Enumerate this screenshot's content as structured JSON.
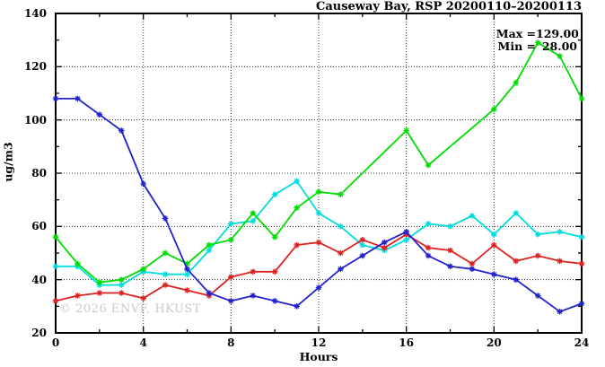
{
  "title": "Causeway Bay, RSP 20200110–20200113",
  "watermark": "© 2026 ENVF, HKUST",
  "annotations": {
    "max_label": "Max =",
    "max_value": "129.00",
    "min_label": "Min =",
    "min_value": "28.00"
  },
  "chart_data": {
    "type": "line",
    "title": "Causeway Bay, RSP 20200110–20200113",
    "xlabel": "Hours",
    "ylabel": "ug/m3",
    "xlim": [
      0,
      24
    ],
    "ylim": [
      20,
      140
    ],
    "xticks": [
      0,
      4,
      8,
      12,
      16,
      20,
      24
    ],
    "yticks": [
      20,
      40,
      60,
      80,
      100,
      120,
      140
    ],
    "x_minor_step": 2,
    "y_minor_step": 10,
    "grid": true,
    "legend": "none",
    "marker": "asterisk",
    "max": 129.0,
    "min": 28.0,
    "x": [
      0,
      1,
      2,
      3,
      4,
      5,
      6,
      7,
      8,
      9,
      10,
      11,
      12,
      13,
      14,
      15,
      16,
      17,
      18,
      19,
      20,
      21,
      22,
      23,
      24
    ],
    "series": [
      {
        "name": "cyan",
        "color": "#00dddd",
        "values": [
          45,
          45,
          38,
          38,
          43,
          42,
          42,
          51,
          61,
          62,
          72,
          77,
          65,
          60,
          53,
          51,
          55,
          61,
          60,
          64,
          57,
          65,
          57,
          58,
          56
        ]
      },
      {
        "name": "green",
        "color": "#00dd00",
        "values": [
          56,
          46,
          39,
          40,
          44,
          50,
          46,
          53,
          55,
          65,
          56,
          67,
          73,
          72,
          null,
          null,
          96,
          83,
          null,
          null,
          104,
          114,
          129,
          124,
          108
        ]
      },
      {
        "name": "red",
        "color": "#dd2222",
        "values": [
          32,
          34,
          35,
          35,
          33,
          38,
          36,
          34,
          41,
          43,
          43,
          53,
          54,
          50,
          55,
          52,
          57,
          52,
          51,
          46,
          53,
          47,
          49,
          47,
          46
        ]
      },
      {
        "name": "blue",
        "color": "#2222cc",
        "values": [
          108,
          108,
          102,
          96,
          76,
          63,
          44,
          35,
          32,
          34,
          32,
          30,
          37,
          44,
          49,
          54,
          58,
          49,
          45,
          44,
          42,
          40,
          34,
          28,
          31
        ]
      }
    ]
  }
}
